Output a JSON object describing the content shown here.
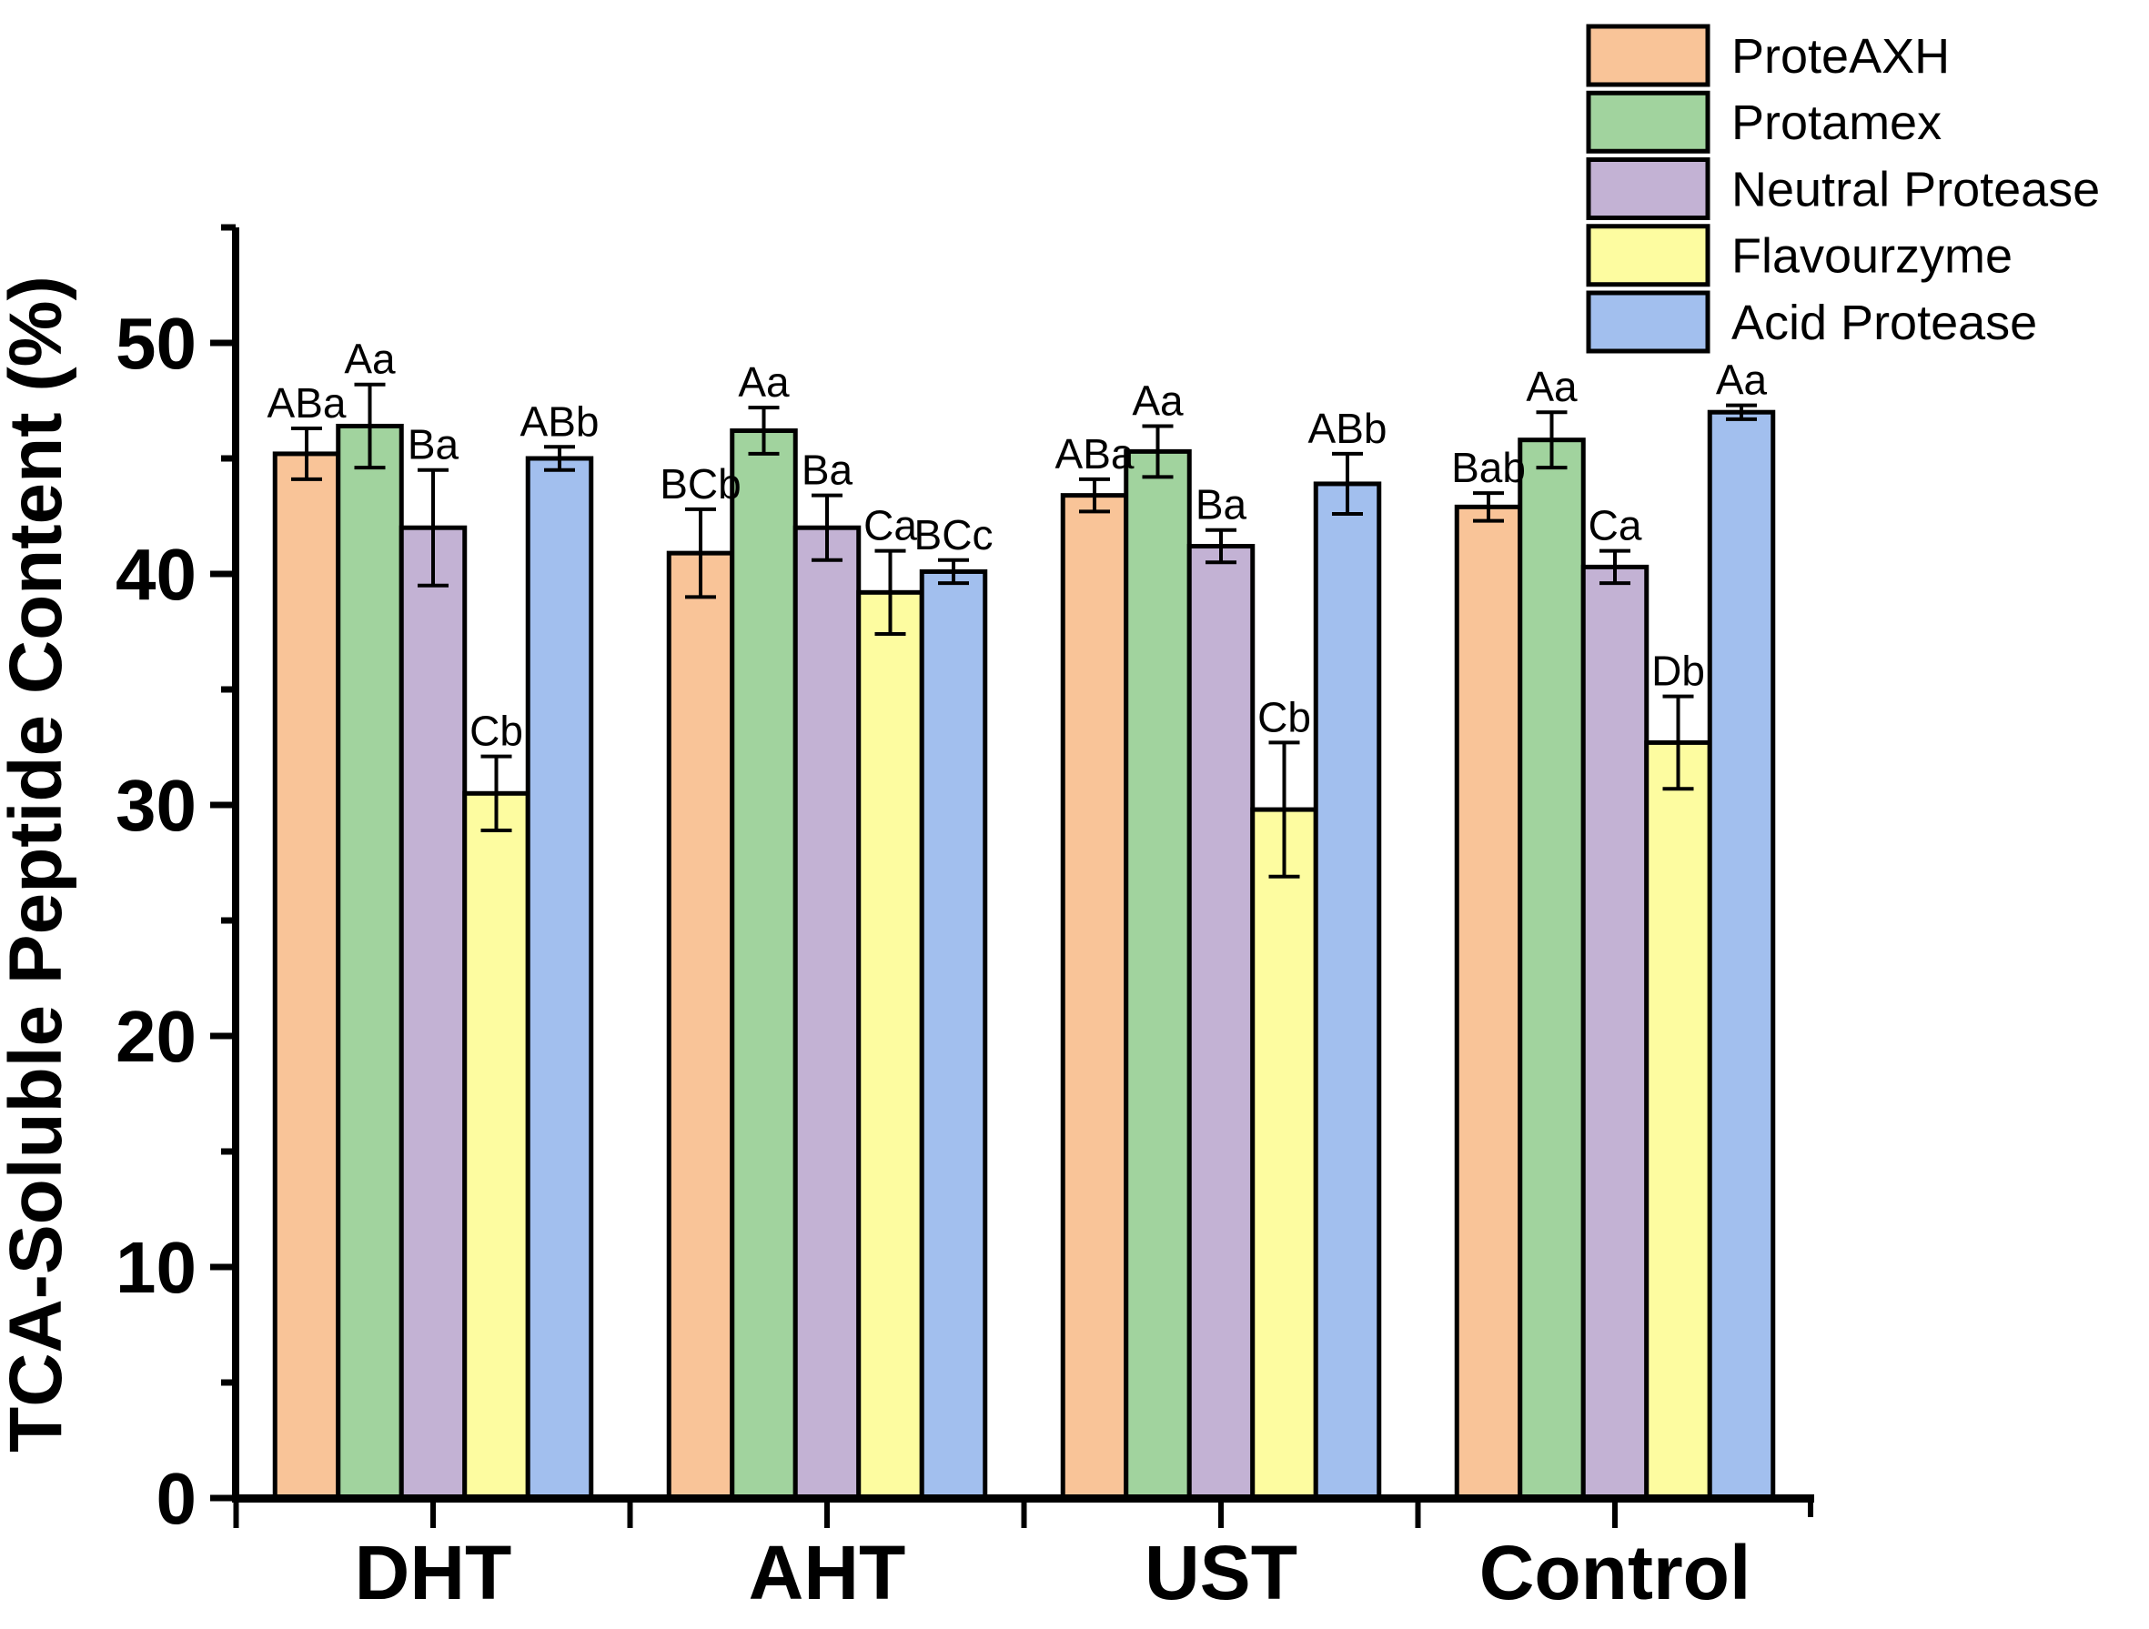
{
  "chart_data": {
    "type": "bar",
    "title": "",
    "xlabel": "",
    "ylabel": "TCA-Soluble Peptide Content (%)",
    "ylim": [
      0,
      55
    ],
    "yticks_major": [
      0,
      10,
      20,
      30,
      40,
      50
    ],
    "yticks_minor": [
      5,
      15,
      25,
      35,
      45,
      55
    ],
    "grid": false,
    "legend_position": "top-right",
    "categories": [
      "DHT",
      "AHT",
      "UST",
      "Control"
    ],
    "series": [
      {
        "name": "ProteAXH",
        "color": "#F9C498",
        "values": [
          45.2,
          40.9,
          43.4,
          42.9
        ],
        "errors": [
          1.1,
          1.9,
          0.7,
          0.6
        ],
        "sig_labels": [
          "ABa",
          "BCb",
          "ABa",
          "Bab"
        ]
      },
      {
        "name": "Protamex",
        "color": "#A1D39E",
        "values": [
          46.4,
          46.2,
          45.3,
          45.8
        ],
        "errors": [
          1.8,
          1.0,
          1.1,
          1.2
        ],
        "sig_labels": [
          "Aa",
          "Aa",
          "Aa",
          "Aa"
        ]
      },
      {
        "name": "Neutral Protease",
        "color": "#C3B2D4",
        "values": [
          42.0,
          42.0,
          41.2,
          40.3
        ],
        "errors": [
          2.5,
          1.4,
          0.7,
          0.7
        ],
        "sig_labels": [
          "Ba",
          "Ba",
          "Ba",
          "Ca"
        ]
      },
      {
        "name": "Flavourzyme",
        "color": "#FDFCA0",
        "values": [
          30.5,
          39.2,
          29.8,
          32.7
        ],
        "errors": [
          1.6,
          1.8,
          2.9,
          2.0
        ],
        "sig_labels": [
          "Cb",
          "Ca",
          "Cb",
          "Db"
        ]
      },
      {
        "name": "Acid Protease",
        "color": "#A2BFEE",
        "values": [
          45.0,
          40.1,
          43.9,
          47.0
        ],
        "errors": [
          0.5,
          0.5,
          1.3,
          0.3
        ],
        "sig_labels": [
          "ABb",
          "BCc",
          "ABb",
          "Aa"
        ]
      }
    ]
  },
  "colors": {
    "axis": "#000000",
    "text": "#000000",
    "background": "#FFFFFF"
  }
}
